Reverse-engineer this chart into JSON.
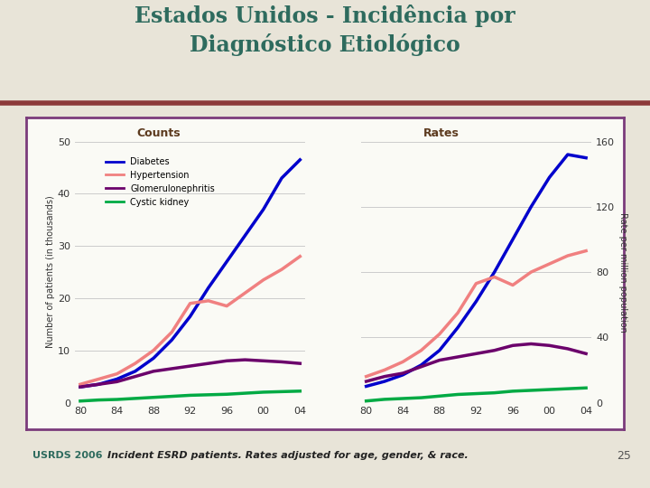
{
  "title_line1": "Estados Unidos - Incidência por",
  "title_line2": "Diagnóstico Etiológico",
  "title_color": "#2E6B5E",
  "background_slide": "#E8E4D8",
  "header_stripe_color": "#8B3A3A",
  "chart_bg": "#FAFAF5",
  "chart_border_color": "#7B3B7B",
  "footer_text": "Incident ESRD patients. Rates adjusted for age, gender, & race.",
  "footer_label": "USRDS 2006",
  "page_number": "25",
  "counts_title": "Counts",
  "rates_title": "Rates",
  "ylabel_left": "Number of patients (in thousands)",
  "ylabel_right": "Rate per million population",
  "x_numeric": [
    0,
    1,
    2,
    3,
    4,
    5,
    6,
    7,
    8,
    9,
    10,
    11,
    12
  ],
  "x_tick_positions": [
    0,
    2,
    4,
    6,
    8,
    10,
    12
  ],
  "x_tick_labels": [
    "80",
    "84",
    "88",
    "92",
    "96",
    "00",
    "04"
  ],
  "counts": {
    "diabetes": [
      3.0,
      3.5,
      4.5,
      6.0,
      8.5,
      12.0,
      16.5,
      22.0,
      27.0,
      32.0,
      37.0,
      43.0,
      46.5
    ],
    "hypertension": [
      3.5,
      4.5,
      5.5,
      7.5,
      10.0,
      13.5,
      19.0,
      19.5,
      18.5,
      21.0,
      23.5,
      25.5,
      28.0
    ],
    "glomerulonephritis": [
      3.0,
      3.5,
      4.0,
      5.0,
      6.0,
      6.5,
      7.0,
      7.5,
      8.0,
      8.2,
      8.0,
      7.8,
      7.5
    ],
    "cystic_kidney": [
      0.3,
      0.5,
      0.6,
      0.8,
      1.0,
      1.2,
      1.4,
      1.5,
      1.6,
      1.8,
      2.0,
      2.1,
      2.2
    ]
  },
  "rates": {
    "diabetes": [
      10,
      13,
      17,
      23,
      32,
      46,
      62,
      80,
      100,
      120,
      138,
      152,
      150
    ],
    "hypertension": [
      16,
      20,
      25,
      32,
      42,
      55,
      73,
      77,
      72,
      80,
      85,
      90,
      93
    ],
    "glomerulonephritis": [
      13,
      16,
      18,
      22,
      26,
      28,
      30,
      32,
      35,
      36,
      35,
      33,
      30
    ],
    "cystic_kidney": [
      1,
      2,
      2.5,
      3,
      4,
      5,
      5.5,
      6,
      7,
      7.5,
      8,
      8.5,
      9
    ]
  },
  "ylim_counts": [
    0,
    50
  ],
  "ylim_rates": [
    0,
    160
  ],
  "yticks_counts": [
    0,
    10,
    20,
    30,
    40,
    50
  ],
  "yticks_rates": [
    0,
    40,
    80,
    120,
    160
  ],
  "colors": {
    "diabetes": "#0000CC",
    "hypertension": "#F08080",
    "glomerulonephritis": "#6B006B",
    "cystic_kidney": "#00AA44"
  },
  "legend_labels": [
    "Diabetes",
    "Hypertension",
    "Glomerulonephritis",
    "Cystic kidney"
  ],
  "line_width": 2.5,
  "subtitle_color": "#5C3A1E"
}
